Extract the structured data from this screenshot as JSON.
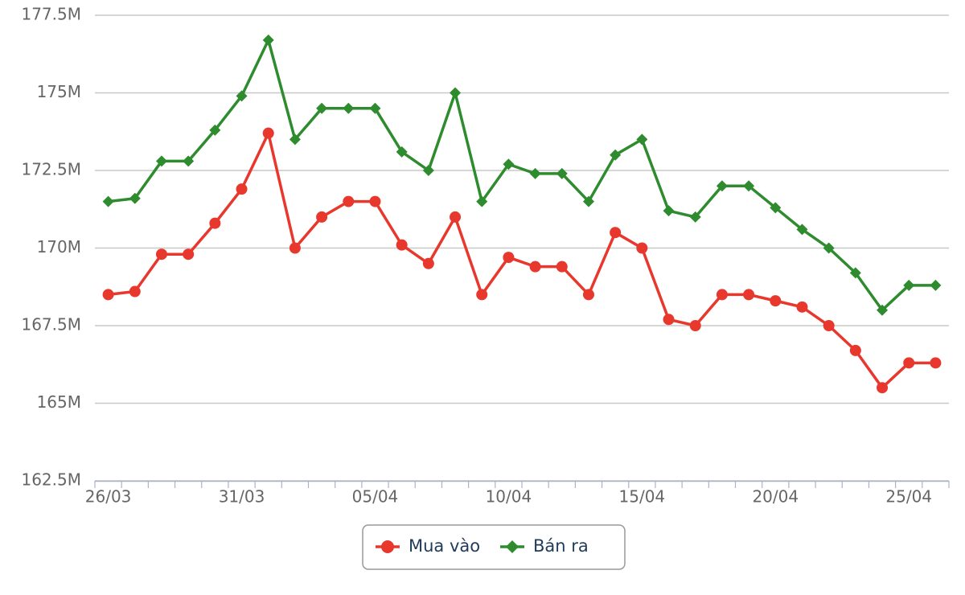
{
  "chart_data": {
    "type": "line",
    "categories": [
      "26/03",
      null,
      null,
      null,
      null,
      "31/03",
      null,
      null,
      null,
      null,
      "05/04",
      null,
      null,
      null,
      null,
      "10/04",
      null,
      null,
      null,
      null,
      "15/04",
      null,
      null,
      null,
      null,
      "20/04",
      null,
      null,
      null,
      null,
      "25/04",
      null
    ],
    "series": [
      {
        "name": "Mua vào",
        "color": "#e8372c",
        "marker": "circle",
        "values": [
          168.5,
          168.6,
          169.8,
          169.8,
          170.8,
          171.9,
          173.7,
          170.0,
          171.0,
          171.5,
          171.5,
          170.1,
          169.5,
          171.0,
          168.5,
          169.7,
          169.4,
          169.4,
          168.5,
          170.5,
          170.0,
          167.7,
          167.5,
          168.5,
          168.5,
          168.3,
          168.1,
          167.5,
          166.7,
          165.5,
          166.3,
          166.3
        ]
      },
      {
        "name": "Bán ra",
        "color": "#2e8b2e",
        "marker": "diamond",
        "values": [
          171.5,
          171.6,
          172.8,
          172.8,
          173.8,
          174.9,
          176.7,
          173.5,
          174.5,
          174.5,
          174.5,
          173.1,
          172.5,
          175.0,
          171.5,
          172.7,
          172.4,
          172.4,
          171.5,
          173.0,
          173.5,
          171.2,
          171.0,
          172.0,
          172.0,
          171.3,
          170.6,
          170.0,
          169.2,
          168.0,
          168.8,
          168.8
        ]
      }
    ],
    "ylim": [
      162.5,
      177.5
    ],
    "yticks": [
      {
        "value": 162.5,
        "label": "162.5M"
      },
      {
        "value": 165,
        "label": "165M"
      },
      {
        "value": 167.5,
        "label": "167.5M"
      },
      {
        "value": 170,
        "label": "170M"
      },
      {
        "value": 172.5,
        "label": "172.5M"
      },
      {
        "value": 175,
        "label": "175M"
      },
      {
        "value": 177.5,
        "label": "177.5M"
      }
    ],
    "grid": true,
    "legend": "bottom"
  }
}
